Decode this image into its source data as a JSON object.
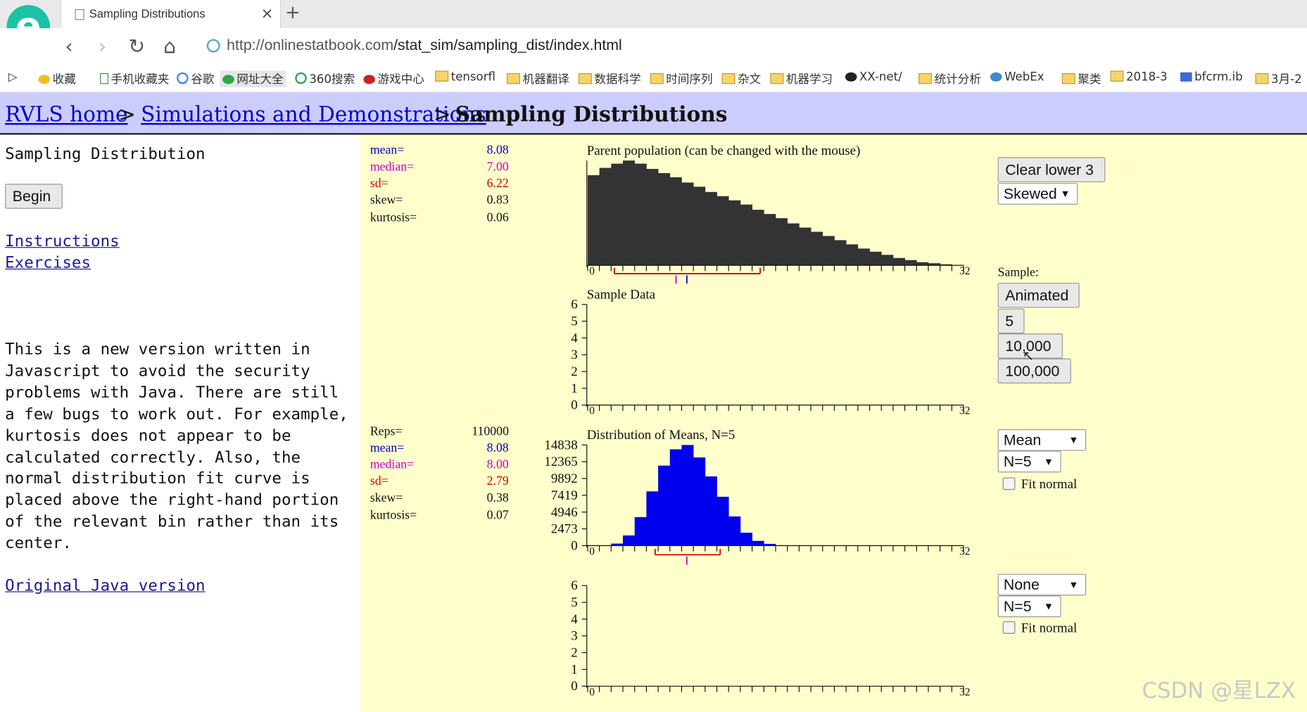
{
  "browser": {
    "tab_title": "Sampling Distributions",
    "tab_close": "×",
    "new_tab": "+",
    "url_host": "http://onlinestatbook.com",
    "url_path": "/stat_sim/sampling_dist/index.html",
    "bookmarks": [
      "收藏",
      "手机收藏夹",
      "谷歌",
      "网址大全",
      "360搜索",
      "游戏中心",
      "tensorfl",
      "机器翻译",
      "数据科学",
      "时间序列",
      "杂文",
      "机器学习",
      "XX-net/",
      "统计分析",
      "WebEx",
      "聚类",
      "2018-3",
      "bfcrm.ib",
      "3月-2"
    ]
  },
  "breadcrumb": {
    "home": "RVLS home",
    "sep1": ">",
    "section": "Simulations and Demonstrations",
    "sep2": ">",
    "current": "Sampling Distributions"
  },
  "left": {
    "heading": "Sampling Distribution",
    "begin_button": "Begin",
    "instructions_link": "Instructions",
    "exercises_link": "Exercises",
    "note_lines": [
      "This is a new version written in",
      "Javascript to avoid the security",
      "problems with Java. There are still",
      "a few bugs to work out. For example,",
      "kurtosis does not appear to be",
      "calculated correctly. Also, the",
      "normal distribution fit curve is",
      "placed above the right-hand portion",
      "of the relevant bin rather than its",
      "center."
    ],
    "java_link": "Original Java version"
  },
  "parent_stats": {
    "mean_label": "mean=",
    "mean": "8.08",
    "median_label": "median=",
    "median": "7.00",
    "sd_label": "sd=",
    "sd": "6.22",
    "skew_label": "skew=",
    "skew": "0.83",
    "kurtosis_label": "kurtosis=",
    "kurtosis": "0.06"
  },
  "means_stats": {
    "reps_label": "Reps=",
    "reps": "110000",
    "mean_label": "mean=",
    "mean": "8.08",
    "median_label": "median=",
    "median": "8.00",
    "sd_label": "sd=",
    "sd": "2.79",
    "skew_label": "skew=",
    "skew": "0.38",
    "kurtosis_label": "kurtosis=",
    "kurtosis": "0.07"
  },
  "controls": {
    "clear_button": "Clear lower 3",
    "dist_select": "Skewed",
    "sample_label": "Sample:",
    "animated_button": "Animated",
    "five_button": "5",
    "tenk_button": "10,000",
    "hundredk_button": "100,000",
    "stat_select_1": "Mean",
    "n_select_1": "N=5",
    "fit_normal_1": "Fit normal",
    "stat_select_2": "None",
    "n_select_2": "N=5",
    "fit_normal_2": "Fit normal"
  },
  "colors": {
    "parent_bar": "#333333",
    "means_bar": "#0000ee",
    "median": "#cc00cc",
    "sd": "#cc0000",
    "mean": "#0000cc",
    "range": "#cc0000"
  },
  "watermark": "CSDN @星LZX",
  "chart_data": [
    {
      "type": "bar",
      "title": "Parent population (can be changed with the mouse)",
      "x_min_label": "0",
      "x_max_label": "32",
      "categories": [
        0,
        1,
        2,
        3,
        4,
        5,
        6,
        7,
        8,
        9,
        10,
        11,
        12,
        13,
        14,
        15,
        16,
        17,
        18,
        19,
        20,
        21,
        22,
        23,
        24,
        25,
        26,
        27,
        28,
        29,
        30,
        31
      ],
      "values": [
        0.86,
        0.93,
        0.97,
        1.0,
        0.97,
        0.92,
        0.88,
        0.84,
        0.79,
        0.75,
        0.7,
        0.66,
        0.62,
        0.58,
        0.53,
        0.49,
        0.45,
        0.4,
        0.36,
        0.32,
        0.28,
        0.24,
        0.2,
        0.16,
        0.13,
        0.1,
        0.07,
        0.05,
        0.03,
        0.02,
        0.01,
        0.0
      ],
      "ylim": [
        0,
        1
      ]
    },
    {
      "type": "bar",
      "title": "Sample Data",
      "y_ticks": [
        "0",
        "1",
        "2",
        "3",
        "4",
        "5",
        "6"
      ],
      "x_min_label": "0",
      "x_max_label": "32",
      "values": [],
      "ylim": [
        0,
        6
      ]
    },
    {
      "type": "bar",
      "title": "Distribution of Means, N=5",
      "y_ticks": [
        "0",
        "2473",
        "4946",
        "7419",
        "9892",
        "12365",
        "14838"
      ],
      "x_min_label": "0",
      "x_max_label": "32",
      "categories": [
        0,
        1,
        2,
        3,
        4,
        5,
        6,
        7,
        8,
        9,
        10,
        11,
        12,
        13,
        14,
        15,
        16,
        17,
        18,
        19,
        20,
        21,
        22,
        23,
        24,
        25,
        26,
        27,
        28,
        29,
        30,
        31
      ],
      "values": [
        0,
        0,
        300,
        1500,
        4200,
        8000,
        11800,
        14200,
        14838,
        13000,
        10200,
        7200,
        4300,
        1900,
        700,
        250,
        60,
        0,
        0,
        0,
        0,
        0,
        0,
        0,
        0,
        0,
        0,
        0,
        0,
        0,
        0,
        0
      ],
      "ylim": [
        0,
        14838
      ]
    },
    {
      "type": "bar",
      "title": "",
      "y_ticks": [
        "0",
        "1",
        "2",
        "3",
        "4",
        "5",
        "6"
      ],
      "x_min_label": "0",
      "x_max_label": "32",
      "values": [],
      "ylim": [
        0,
        6
      ]
    }
  ]
}
